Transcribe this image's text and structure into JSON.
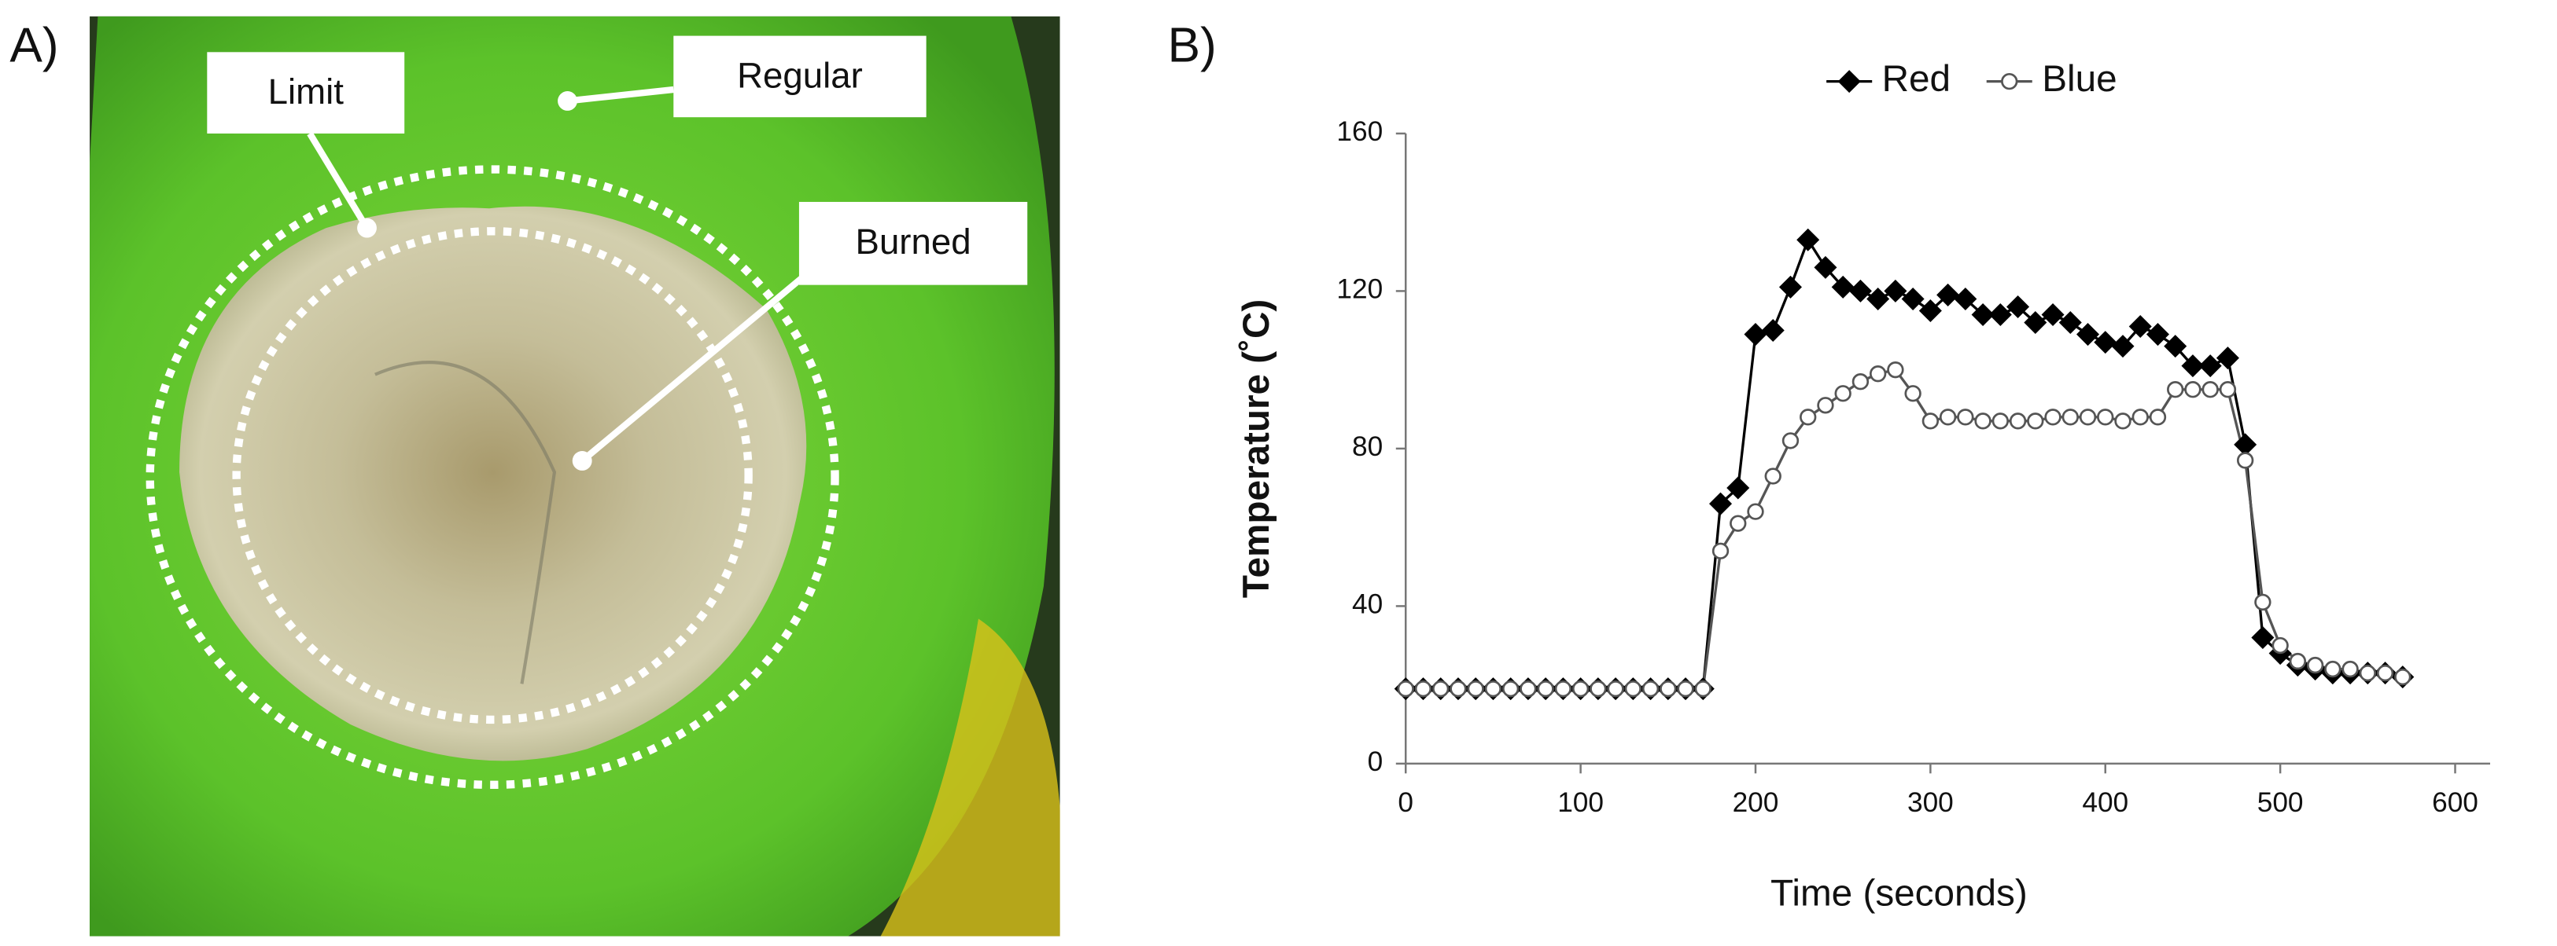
{
  "panel_a": {
    "label": "A)",
    "annotations": {
      "limit": "Limit",
      "regular": "Regular",
      "burned": "Burned"
    }
  },
  "panel_b": {
    "label": "B)"
  },
  "chart_data": {
    "type": "line",
    "xlabel": "Time (seconds)",
    "ylabel": "Temperature (˚C)",
    "x": [
      0,
      10,
      20,
      30,
      40,
      50,
      60,
      70,
      80,
      90,
      100,
      110,
      120,
      130,
      140,
      150,
      160,
      170,
      180,
      190,
      200,
      210,
      220,
      230,
      240,
      250,
      260,
      270,
      280,
      290,
      300,
      310,
      320,
      330,
      340,
      350,
      360,
      370,
      380,
      390,
      400,
      410,
      420,
      430,
      440,
      450,
      460,
      470,
      480,
      490,
      500,
      510,
      520,
      530,
      540,
      550,
      560,
      570
    ],
    "series": [
      {
        "name": "Red",
        "color": "#000000",
        "marker": "diamond",
        "values": [
          19,
          19,
          19,
          19,
          19,
          19,
          19,
          19,
          19,
          19,
          19,
          19,
          19,
          19,
          19,
          19,
          19,
          19,
          66,
          70,
          109,
          110,
          121,
          133,
          126,
          121,
          120,
          118,
          120,
          118,
          115,
          119,
          118,
          114,
          114,
          116,
          112,
          114,
          112,
          109,
          107,
          106,
          111,
          109,
          106,
          101,
          101,
          103,
          81,
          32,
          28,
          25,
          24,
          23,
          23,
          23,
          23,
          22
        ]
      },
      {
        "name": "Blue",
        "color": "#555555",
        "marker": "circle",
        "values": [
          19,
          19,
          19,
          19,
          19,
          19,
          19,
          19,
          19,
          19,
          19,
          19,
          19,
          19,
          19,
          19,
          19,
          19,
          54,
          61,
          64,
          73,
          82,
          88,
          91,
          94,
          97,
          99,
          100,
          94,
          87,
          88,
          88,
          87,
          87,
          87,
          87,
          88,
          88,
          88,
          88,
          87,
          88,
          88,
          95,
          95,
          95,
          95,
          77,
          41,
          30,
          26,
          25,
          24,
          24,
          23,
          23,
          22
        ]
      }
    ],
    "xlim": [
      0,
      620
    ],
    "xticks": [
      0,
      100,
      200,
      300,
      400,
      500,
      600
    ],
    "ylim": [
      0,
      160
    ],
    "yticks": [
      0,
      40,
      80,
      120,
      160
    ],
    "grid": false,
    "legend": "top"
  }
}
